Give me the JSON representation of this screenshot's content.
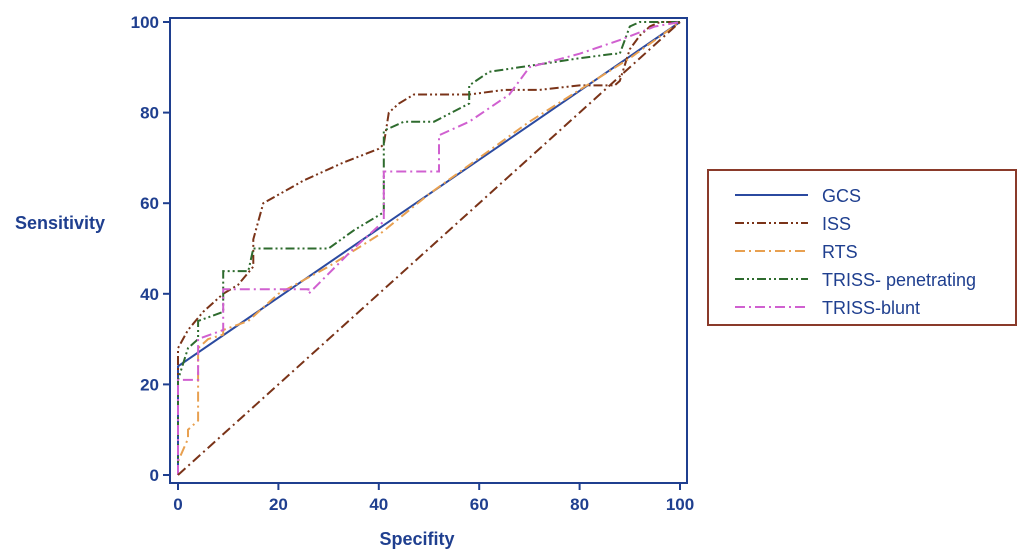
{
  "chart_data": {
    "type": "line",
    "title": "",
    "xlabel": "Specifity",
    "ylabel": "Sensitivity",
    "xlim": [
      0,
      100
    ],
    "ylim": [
      0,
      100
    ],
    "xticks": [
      "0",
      "20",
      "40",
      "60",
      "80",
      "100"
    ],
    "yticks": [
      "0",
      "20",
      "40",
      "60",
      "80",
      "100"
    ],
    "grid": false,
    "legend_position": "right",
    "series": [
      {
        "name": "GCS",
        "color": "#2b4aa0",
        "dash": "solid",
        "x": [
          0,
          0,
          100
        ],
        "y": [
          0,
          24,
          100
        ]
      },
      {
        "name": "ISS",
        "color": "#7a3318",
        "dash": "dashdotdot",
        "x": [
          0,
          0,
          2,
          5,
          9,
          12,
          15,
          15,
          17,
          25,
          33,
          40,
          41,
          42,
          44,
          47,
          52,
          58,
          65,
          72,
          80,
          87,
          88,
          90,
          92,
          94,
          96,
          100
        ],
        "y": [
          0,
          28,
          32,
          36,
          40,
          42,
          46,
          52,
          60,
          65,
          69,
          72,
          73,
          80,
          82,
          84,
          84,
          84,
          85,
          85,
          86,
          86,
          87,
          94,
          97,
          99,
          100,
          100
        ]
      },
      {
        "name": "RTS",
        "color": "#e8a050",
        "dash": "dashdot",
        "x": [
          0,
          0,
          2,
          2,
          4,
          4,
          6,
          9,
          9,
          14,
          20,
          30,
          40,
          50,
          60,
          70,
          80,
          90,
          100
        ],
        "y": [
          0,
          3,
          8,
          10,
          12,
          28,
          30,
          31,
          32,
          34,
          40,
          46,
          53,
          62,
          70,
          78,
          85,
          92,
          100
        ]
      },
      {
        "name": "TRISS- penetrating",
        "color": "#2e6b2e",
        "dash": "dashdotdot",
        "x": [
          0,
          0,
          2,
          4,
          4,
          9,
          9,
          14,
          15,
          28,
          30,
          35,
          41,
          41,
          45,
          51,
          58,
          58,
          62,
          68,
          74,
          80,
          87,
          88,
          89,
          90,
          92,
          100
        ],
        "y": [
          0,
          21,
          28,
          30,
          34,
          36,
          45,
          45,
          50,
          50,
          50,
          54,
          58,
          76,
          78,
          78,
          82,
          86,
          89,
          90,
          91,
          92,
          93,
          93,
          96,
          99,
          100,
          100
        ]
      },
      {
        "name": "TRISS-blunt",
        "color": "#d060d0",
        "dash": "dashdot",
        "x": [
          0,
          0,
          1,
          4,
          4,
          9,
          9,
          15,
          26,
          26,
          35,
          41,
          41,
          52,
          52,
          58,
          66,
          70,
          80,
          88,
          95,
          100
        ],
        "y": [
          0,
          21,
          21,
          21,
          30,
          32,
          41,
          41,
          41,
          40,
          50,
          56,
          67,
          67,
          75,
          78,
          84,
          90,
          93,
          96,
          99,
          100
        ]
      },
      {
        "name": "",
        "color": "#7a3318",
        "dash": "dashdot",
        "x": [
          0,
          100
        ],
        "y": [
          0,
          100
        ]
      }
    ]
  }
}
